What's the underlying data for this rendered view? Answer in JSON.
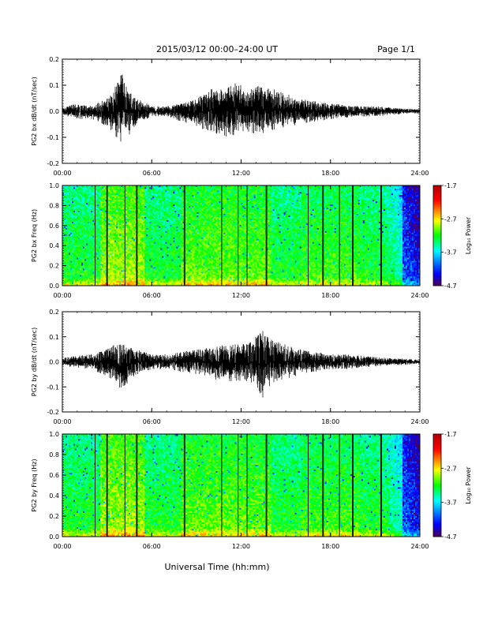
{
  "header": {
    "title": "2015/03/12  00:00–24:00 UT",
    "page": "Page 1/1"
  },
  "footer": {
    "xlabel": "Universal Time (hh:mm)"
  },
  "chart_data": [
    {
      "type": "line",
      "ylabel": "PG2 bx dB/dt (nT/sec)",
      "xlim": [
        "00:00",
        "24:00"
      ],
      "ylim": [
        -0.2,
        0.2
      ],
      "x_ticks": [
        "00:00",
        "06:00",
        "12:00",
        "18:00",
        "24:00"
      ],
      "y_ticks": [
        "0.2",
        "0.1",
        "0.0",
        "-0.1",
        "-0.2"
      ],
      "envelope": {
        "hours": [
          0,
          1,
          2,
          3,
          3.5,
          4,
          4.5,
          5,
          6,
          7,
          8,
          9,
          10,
          11,
          11.5,
          12,
          12.5,
          13,
          14,
          15,
          16,
          17,
          18,
          19,
          20,
          21,
          22,
          23,
          24
        ],
        "max": [
          0.015,
          0.03,
          0.02,
          0.05,
          0.09,
          0.15,
          0.08,
          0.05,
          0.02,
          0.02,
          0.03,
          0.05,
          0.09,
          0.1,
          0.12,
          0.1,
          0.08,
          0.1,
          0.09,
          0.07,
          0.05,
          0.04,
          0.03,
          0.025,
          0.02,
          0.02,
          0.015,
          0.01,
          0.008
        ],
        "min": [
          -0.015,
          -0.03,
          -0.03,
          -0.06,
          -0.1,
          -0.12,
          -0.09,
          -0.05,
          -0.02,
          -0.02,
          -0.04,
          -0.06,
          -0.08,
          -0.1,
          -0.1,
          -0.08,
          -0.08,
          -0.09,
          -0.08,
          -0.06,
          -0.05,
          -0.04,
          -0.03,
          -0.025,
          -0.02,
          -0.02,
          -0.015,
          -0.01,
          -0.008
        ]
      }
    },
    {
      "type": "heatmap",
      "ylabel": "PG2 bx Freq (Hz)",
      "xlim": [
        "00:00",
        "24:00"
      ],
      "ylim": [
        0.0,
        1.0
      ],
      "x_ticks": [
        "00:00",
        "06:00",
        "12:00",
        "18:00",
        "24:00"
      ],
      "y_ticks": [
        "1.0",
        "0.8",
        "0.6",
        "0.4",
        "0.2",
        "0.0"
      ],
      "colorbar": {
        "label": "Log₁₀ Power",
        "ticks": [
          "-1.7",
          "-2.7",
          "-3.7",
          "-4.7"
        ],
        "range": [
          -4.7,
          -1.7
        ]
      },
      "gap_lines_hours": [
        2.2,
        3.0,
        4.2,
        5.0,
        8.2,
        10.7,
        11.8,
        12.4,
        13.7,
        16.5,
        17.5,
        18.6,
        19.5,
        21.4
      ]
    },
    {
      "type": "line",
      "ylabel": "PG2 by dB/dt (nT/sec)",
      "xlim": [
        "00:00",
        "24:00"
      ],
      "ylim": [
        -0.2,
        0.2
      ],
      "x_ticks": [
        "00:00",
        "06:00",
        "12:00",
        "18:00",
        "24:00"
      ],
      "y_ticks": [
        "0.2",
        "0.1",
        "0.0",
        "-0.1",
        "-0.2"
      ],
      "envelope": {
        "hours": [
          0,
          1,
          2,
          3,
          3.5,
          4,
          4.5,
          5,
          6,
          7,
          8,
          9,
          10,
          11,
          12,
          12.5,
          13,
          13.5,
          14,
          15,
          16,
          17,
          18,
          19,
          20,
          21,
          22,
          23,
          24
        ],
        "max": [
          0.015,
          0.025,
          0.03,
          0.05,
          0.07,
          0.07,
          0.06,
          0.05,
          0.03,
          0.03,
          0.04,
          0.05,
          0.06,
          0.07,
          0.07,
          0.08,
          0.1,
          0.13,
          0.09,
          0.07,
          0.05,
          0.04,
          0.03,
          0.03,
          0.025,
          0.02,
          0.015,
          0.012,
          0.008
        ],
        "min": [
          -0.015,
          -0.025,
          -0.03,
          -0.06,
          -0.08,
          -0.12,
          -0.08,
          -0.05,
          -0.03,
          -0.03,
          -0.04,
          -0.05,
          -0.07,
          -0.08,
          -0.08,
          -0.09,
          -0.1,
          -0.16,
          -0.09,
          -0.07,
          -0.05,
          -0.04,
          -0.03,
          -0.03,
          -0.025,
          -0.02,
          -0.015,
          -0.012,
          -0.008
        ]
      }
    },
    {
      "type": "heatmap",
      "ylabel": "PG2 by Freq (Hz)",
      "xlim": [
        "00:00",
        "24:00"
      ],
      "ylim": [
        0.0,
        1.0
      ],
      "x_ticks": [
        "00:00",
        "06:00",
        "12:00",
        "18:00",
        "24:00"
      ],
      "y_ticks": [
        "1.0",
        "0.8",
        "0.6",
        "0.4",
        "0.2",
        "0.0"
      ],
      "colorbar": {
        "label": "Log₁₀ Power",
        "ticks": [
          "-1.7",
          "-2.7",
          "-3.7",
          "-4.7"
        ],
        "range": [
          -4.7,
          -1.7
        ]
      },
      "gap_lines_hours": [
        2.2,
        3.0,
        4.2,
        5.0,
        8.2,
        10.7,
        11.8,
        12.4,
        13.7,
        16.5,
        17.5,
        18.6,
        19.5,
        21.4
      ]
    }
  ]
}
